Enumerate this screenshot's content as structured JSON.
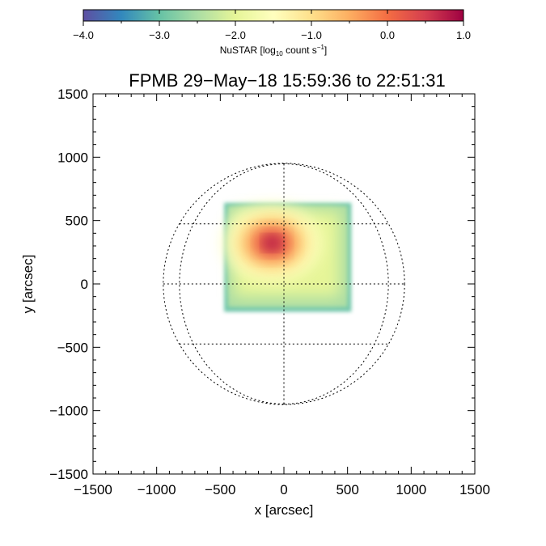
{
  "chart_data": {
    "type": "heatmap",
    "title": "FPMB 29−May−18 15:59:36 to 22:51:31",
    "xlabel": "x [arcsec]",
    "ylabel": "y [arcsec]",
    "xlim": [
      -1500,
      1500
    ],
    "ylim": [
      -1500,
      1500
    ],
    "xticks": [
      -1500,
      -1000,
      -500,
      0,
      500,
      1000,
      1500
    ],
    "yticks": [
      -1500,
      -1000,
      -500,
      0,
      500,
      1000,
      1500
    ],
    "xtick_labels": [
      "−1500",
      "−1000",
      "−500",
      "0",
      "500",
      "1000",
      "1500"
    ],
    "ytick_labels": [
      "−1500",
      "−1000",
      "−500",
      "0",
      "500",
      "1000",
      "1500"
    ],
    "colorbar": {
      "label_main": "NuSTAR [log",
      "label_sub": "10",
      "label_mid": " count s",
      "label_sup": "−1",
      "label_end": "]",
      "range": [
        -4.0,
        1.0
      ],
      "ticks": [
        -4.0,
        -3.0,
        -2.0,
        -1.0,
        0.0,
        1.0
      ],
      "tick_labels": [
        "−4.0",
        "−3.0",
        "−2.0",
        "−1.0",
        "0.0",
        "1.0"
      ],
      "colormap": [
        "#5e4fa2",
        "#3288bd",
        "#66c2a5",
        "#abdda4",
        "#e6f598",
        "#ffffbf",
        "#fee08b",
        "#fdae61",
        "#f46d43",
        "#d53e4f",
        "#9e0142"
      ]
    },
    "solar_limb_radius_arcsec": 948,
    "grid_latitudes_deg": [
      -30,
      0,
      30
    ],
    "grid_longitudes_deg": [
      -60,
      0,
      60
    ],
    "image_region": {
      "x_range": [
        -470,
        530
      ],
      "y_range": [
        -220,
        640
      ],
      "background_log_level": -2.2,
      "edge_log_level": -3.0,
      "peak": {
        "x": -130,
        "y": 310,
        "log_level": 0.9
      }
    }
  }
}
